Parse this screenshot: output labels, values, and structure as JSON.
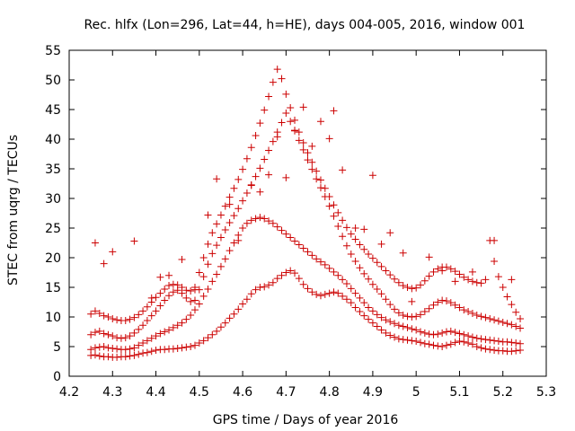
{
  "chart_data": {
    "type": "scatter",
    "title": "Rec. hlfx (Lon=296, Lat=44, h=HE), days 004-005, 2016, window 001",
    "xlabel": "GPS time / Days of year 2016",
    "ylabel": "STEC from uqrg / TECUs",
    "xlim": [
      4.2,
      5.3
    ],
    "ylim": [
      0,
      55
    ],
    "xticks": [
      "4.2",
      "4.3",
      "4.4",
      "4.5",
      "4.6",
      "4.7",
      "4.8",
      "4.9",
      "5",
      "5.1",
      "5.2",
      "5.3"
    ],
    "yticks": [
      "0",
      "5",
      "10",
      "15",
      "20",
      "25",
      "30",
      "35",
      "40",
      "45",
      "50",
      "55"
    ],
    "grid": false,
    "marker": "plus",
    "color": "#cc0000",
    "series": [
      {
        "x": [
          4.25,
          4.26,
          4.27,
          4.28,
          4.29,
          4.3,
          4.31,
          4.32,
          4.33,
          4.34,
          4.35,
          4.36,
          4.37,
          4.38,
          4.39,
          4.4,
          4.41,
          4.42,
          4.43,
          4.44,
          4.45,
          4.46,
          4.47,
          4.48,
          4.49,
          4.5,
          4.51,
          4.52,
          4.53,
          4.54,
          4.55,
          4.56,
          4.57,
          4.58,
          4.59,
          4.6,
          4.61,
          4.62,
          4.63,
          4.64,
          4.65,
          4.66,
          4.67,
          4.68,
          4.69,
          4.7,
          4.71,
          4.72,
          4.73,
          4.74,
          4.75,
          4.76,
          4.77,
          4.78,
          4.79,
          4.8,
          4.81,
          4.82,
          4.83,
          4.84,
          4.85,
          4.86,
          4.87,
          4.88,
          4.89,
          4.9,
          4.91,
          4.92,
          4.93,
          4.94,
          4.95,
          4.96,
          4.97,
          4.98,
          4.99,
          5.0,
          5.01,
          5.02,
          5.03,
          5.04,
          5.05,
          5.06,
          5.07,
          5.08,
          5.09,
          5.1,
          5.11,
          5.12,
          5.13,
          5.14,
          5.15,
          5.16,
          5.17,
          5.18,
          5.19,
          5.2,
          5.21,
          5.22,
          5.23,
          5.24
        ],
        "y": [
          3.5,
          3.6,
          3.4,
          3.3,
          3.3,
          3.2,
          3.2,
          3.3,
          3.3,
          3.4,
          3.5,
          3.7,
          3.9,
          4.0,
          4.2,
          4.4,
          4.5,
          4.5,
          4.6,
          4.6,
          4.7,
          4.8,
          4.9,
          5.0,
          5.2,
          5.6,
          6.0,
          6.5,
          7.0,
          7.6,
          8.3,
          9.0,
          9.8,
          10.5,
          11.3,
          12.2,
          13.0,
          13.9,
          14.6,
          15.0,
          15.1,
          15.4,
          15.8,
          16.5,
          17.0,
          17.5,
          17.8,
          17.4,
          16.5,
          15.5,
          14.8,
          14.2,
          13.8,
          13.6,
          13.8,
          14.0,
          14.2,
          14.0,
          13.5,
          13.0,
          12.4,
          11.6,
          10.9,
          10.2,
          9.6,
          9.0,
          8.4,
          7.8,
          7.3,
          6.9,
          6.6,
          6.3,
          6.2,
          6.1,
          6.0,
          5.9,
          5.7,
          5.5,
          5.4,
          5.2,
          5.1,
          5.0,
          5.2,
          5.4,
          5.7,
          5.9,
          5.8,
          5.6,
          5.4,
          5.0,
          4.8,
          4.6,
          4.5,
          4.4,
          4.3,
          4.3,
          4.2,
          4.2,
          4.3,
          4.4
        ]
      },
      {
        "x": [
          4.25,
          4.26,
          4.27,
          4.28,
          4.29,
          4.3,
          4.31,
          4.32,
          4.33,
          4.34,
          4.35,
          4.36,
          4.37,
          4.38,
          4.39,
          4.4,
          4.41,
          4.42,
          4.43,
          4.44,
          4.45,
          4.46,
          4.47,
          4.48,
          4.49,
          4.5,
          4.51,
          4.52,
          4.53,
          4.54,
          4.55,
          4.56,
          4.57,
          4.58,
          4.59,
          4.6,
          4.61,
          4.62,
          4.63,
          4.64,
          4.65,
          4.66,
          4.67,
          4.68,
          4.69,
          4.7,
          4.71,
          4.72,
          4.73,
          4.74,
          4.75,
          4.76,
          4.77,
          4.78,
          4.79,
          4.8,
          4.81,
          4.82,
          4.83,
          4.84,
          4.85,
          4.86,
          4.87,
          4.88,
          4.89,
          4.9,
          4.91,
          4.92,
          4.93,
          4.94,
          4.95,
          4.96,
          4.97,
          4.98,
          4.99,
          5.0,
          5.01,
          5.02,
          5.03,
          5.04,
          5.05,
          5.06,
          5.07,
          5.08,
          5.09,
          5.1,
          5.11,
          5.12,
          5.13,
          5.14,
          5.15,
          5.16,
          5.17,
          5.18,
          5.19,
          5.2,
          5.21,
          5.22,
          5.23,
          5.24
        ],
        "y": [
          4.5,
          4.8,
          4.9,
          5.0,
          4.8,
          4.7,
          4.6,
          4.5,
          4.5,
          4.6,
          4.8,
          5.2,
          5.6,
          6.0,
          6.4,
          6.8,
          7.2,
          7.5,
          7.8,
          8.2,
          8.6,
          9.0,
          9.6,
          10.3,
          11.2,
          12.2,
          13.5,
          14.7,
          16.0,
          17.2,
          18.5,
          19.8,
          21.2,
          22.5,
          23.8,
          25.0,
          25.8,
          26.3,
          26.6,
          26.8,
          26.6,
          26.2,
          25.8,
          25.2,
          24.6,
          24.0,
          23.4,
          22.8,
          22.2,
          21.6,
          21.0,
          20.4,
          19.8,
          19.3,
          18.8,
          18.2,
          17.6,
          17.0,
          16.3,
          15.6,
          14.8,
          14.0,
          13.2,
          12.4,
          11.6,
          11.0,
          10.4,
          9.9,
          9.5,
          9.2,
          8.9,
          8.6,
          8.4,
          8.2,
          8.0,
          7.8,
          7.5,
          7.3,
          7.1,
          7.0,
          7.1,
          7.3,
          7.5,
          7.6,
          7.4,
          7.2,
          7.0,
          6.8,
          6.6,
          6.4,
          6.3,
          6.2,
          6.1,
          6.0,
          5.9,
          5.8,
          5.8,
          5.7,
          5.6,
          5.5
        ]
      },
      {
        "x": [
          4.25,
          4.26,
          4.27,
          4.28,
          4.29,
          4.3,
          4.31,
          4.32,
          4.33,
          4.34,
          4.35,
          4.36,
          4.37,
          4.38,
          4.39,
          4.4,
          4.41,
          4.42,
          4.43,
          4.44,
          4.45,
          4.46,
          4.47,
          4.48,
          4.49,
          4.5,
          4.51,
          4.52,
          4.53,
          4.54,
          4.55,
          4.56,
          4.57,
          4.58,
          4.59,
          4.6,
          4.61,
          4.62,
          4.63,
          4.64,
          4.65,
          4.66,
          4.67,
          4.68,
          4.69,
          4.7,
          4.71,
          4.72,
          4.73,
          4.74,
          4.75,
          4.76,
          4.77,
          4.78,
          4.79,
          4.8,
          4.81,
          4.82,
          4.83,
          4.84,
          4.85,
          4.86,
          4.87,
          4.88,
          4.89,
          4.9,
          4.91,
          4.92,
          4.93,
          4.94,
          4.95,
          4.96,
          4.97,
          4.98,
          4.99,
          5.0,
          5.01,
          5.02,
          5.03,
          5.04,
          5.05,
          5.06,
          5.07,
          5.08,
          5.09,
          5.1,
          5.11,
          5.12,
          5.13,
          5.14,
          5.15,
          5.16,
          5.17,
          5.18,
          5.19,
          5.2,
          5.21,
          5.22,
          5.23,
          5.24
        ],
        "y": [
          7.0,
          7.4,
          7.6,
          7.2,
          7.0,
          6.8,
          6.5,
          6.4,
          6.5,
          6.8,
          7.3,
          7.9,
          8.6,
          9.4,
          10.2,
          11.0,
          11.9,
          12.8,
          13.6,
          14.2,
          14.5,
          14.0,
          13.2,
          12.6,
          12.8,
          14.6,
          16.8,
          18.9,
          20.7,
          22.1,
          23.4,
          24.7,
          25.9,
          27.1,
          28.3,
          29.6,
          30.9,
          32.3,
          33.7,
          35.1,
          36.6,
          38.1,
          39.6,
          41.2,
          42.8,
          44.4,
          43.0,
          41.5,
          39.8,
          38.2,
          36.5,
          34.9,
          33.3,
          31.8,
          30.3,
          28.7,
          27.0,
          25.3,
          23.6,
          22.0,
          20.6,
          19.4,
          18.3,
          17.3,
          16.4,
          15.5,
          14.7,
          13.9,
          13.0,
          12.1,
          11.3,
          10.7,
          10.3,
          10.1,
          10.0,
          10.1,
          10.4,
          10.9,
          11.4,
          12.0,
          12.5,
          12.8,
          12.7,
          12.4,
          12.0,
          11.6,
          11.2,
          10.9,
          10.6,
          10.3,
          10.1,
          9.9,
          9.7,
          9.5,
          9.3,
          9.1,
          8.9,
          8.7,
          8.4,
          8.1
        ]
      },
      {
        "x": [
          4.25,
          4.26,
          4.27,
          4.28,
          4.29,
          4.3,
          4.31,
          4.32,
          4.33,
          4.34,
          4.35,
          4.36,
          4.37,
          4.38,
          4.39,
          4.4,
          4.41,
          4.42,
          4.43,
          4.44,
          4.45,
          4.46,
          4.47,
          4.48,
          4.49,
          4.5,
          4.51,
          4.52,
          4.53,
          4.54,
          4.55,
          4.56,
          4.57,
          4.58,
          4.59,
          4.6,
          4.61,
          4.62,
          4.63,
          4.64,
          4.65,
          4.66,
          4.67,
          4.68,
          4.69,
          4.7,
          4.71,
          4.72,
          4.73,
          4.74,
          4.75,
          4.76,
          4.77,
          4.78,
          4.79,
          4.8,
          4.81,
          4.82,
          4.83,
          4.84,
          4.85,
          4.86,
          4.87,
          4.88,
          4.89,
          4.9,
          4.91,
          4.92,
          4.93,
          4.94,
          4.95,
          4.96,
          4.97,
          4.98,
          4.99,
          5.0,
          5.01,
          5.02,
          5.03,
          5.04,
          5.05,
          5.06,
          5.07,
          5.08,
          5.09,
          5.1,
          5.11,
          5.12,
          5.13,
          5.14,
          5.15,
          5.16,
          5.17,
          5.18,
          5.19,
          5.2,
          5.21,
          5.22,
          5.23,
          5.24
        ],
        "y": [
          10.5,
          11.0,
          10.6,
          10.2,
          10.0,
          9.7,
          9.5,
          9.4,
          9.4,
          9.6,
          9.9,
          10.4,
          11.0,
          11.7,
          12.5,
          13.3,
          14.0,
          14.7,
          15.3,
          15.5,
          15.4,
          15.0,
          14.5,
          14.4,
          15.0,
          17.5,
          20.0,
          22.3,
          24.2,
          25.7,
          27.2,
          28.7,
          30.2,
          31.7,
          33.2,
          34.9,
          36.7,
          38.6,
          40.6,
          42.7,
          44.9,
          47.2,
          49.6,
          51.8,
          50.2,
          47.6,
          45.3,
          43.2,
          41.2,
          39.4,
          37.7,
          36.1,
          34.6,
          33.1,
          31.7,
          30.3,
          28.9,
          27.6,
          26.3,
          25.1,
          24.0,
          23.1,
          22.2,
          21.4,
          20.6,
          19.9,
          19.2,
          18.5,
          17.8,
          17.1,
          16.4,
          15.8,
          15.3,
          15.0,
          14.8,
          14.9,
          15.4,
          16.1,
          16.9,
          17.6,
          18.1,
          18.4,
          18.4,
          18.1,
          17.7,
          17.2,
          16.7,
          16.3,
          16.0,
          15.8,
          15.7,
          16.3,
          22.9,
          19.4,
          16.8,
          15.0,
          13.4,
          12.1,
          10.8,
          9.7
        ]
      },
      {
        "x": [
          4.26,
          4.28,
          4.3,
          4.35,
          4.39,
          4.41,
          4.43,
          4.46,
          4.49,
          4.52,
          4.54,
          4.57,
          4.59,
          4.62,
          4.64,
          4.66,
          4.68,
          4.7,
          4.72,
          4.74,
          4.76,
          4.78,
          4.8,
          4.81,
          4.83,
          4.86,
          4.88,
          4.9,
          4.92,
          4.94,
          4.97,
          4.99,
          5.03,
          5.06,
          5.09,
          5.13,
          5.18,
          5.22
        ],
        "y": [
          22.5,
          19.0,
          21.0,
          22.8,
          13.2,
          16.7,
          17.0,
          19.7,
          14.6,
          27.2,
          33.3,
          29.0,
          22.9,
          32.2,
          31.1,
          34.0,
          40.4,
          33.5,
          41.4,
          45.4,
          38.8,
          43.0,
          40.1,
          44.8,
          34.8,
          25.0,
          24.8,
          33.9,
          22.3,
          24.2,
          20.8,
          12.6,
          20.1,
          17.8,
          16.0,
          17.6,
          22.9,
          16.3
        ]
      }
    ]
  }
}
